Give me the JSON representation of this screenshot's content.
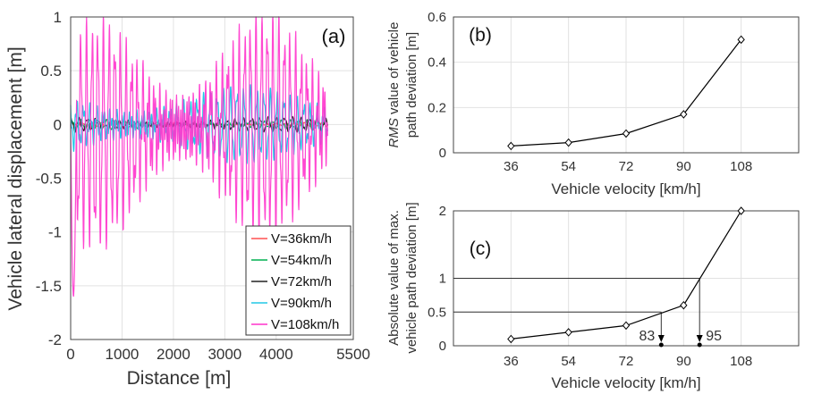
{
  "chart_data": [
    {
      "type": "line",
      "panel_label": "(a)",
      "xlabel": "Distance [m]",
      "ylabel": "Vehicle lateral displacement [m]",
      "xlim": [
        0,
        5500
      ],
      "ylim": [
        -2,
        1
      ],
      "xticks": [
        "0",
        "1000",
        "2000",
        "3000",
        "4000",
        "5500"
      ],
      "yticks": [
        "1",
        "0.5",
        "0",
        "-0.5",
        "-1",
        "-1.5",
        "-2"
      ],
      "grid": true,
      "legend_position": "bottom-right",
      "series": [
        {
          "name": "V=36km/h",
          "color": "#ff5050",
          "amplitude": 0.02,
          "period_m": 180
        },
        {
          "name": "V=54km/h",
          "color": "#00b050",
          "amplitude": 0.04,
          "period_m": 170
        },
        {
          "name": "V=72km/h",
          "color": "#222222",
          "amplitude": 0.06,
          "period_m": 160
        },
        {
          "name": "V=90km/h",
          "color": "#22c8e6",
          "amplitude": 0.3,
          "period_m": 130
        },
        {
          "name": "V=108km/h",
          "color": "#ff33cc",
          "amplitude": 0.9,
          "period_m": 110
        }
      ]
    },
    {
      "type": "line",
      "panel_label": "(b)",
      "xlabel": "Vehicle velocity [km/h]",
      "ylabel_italic": "RMS",
      "ylabel_rest": " value of vehicle",
      "ylabel_line2": "path deviation [m]",
      "xlim": [
        18,
        126
      ],
      "ylim": [
        0,
        0.6
      ],
      "xticks": [
        "36",
        "54",
        "72",
        "90",
        "108"
      ],
      "yticks": [
        "0",
        "0.2",
        "0.4",
        "0.6"
      ],
      "grid": true,
      "x": [
        36,
        54,
        72,
        90,
        108
      ],
      "y": [
        0.03,
        0.045,
        0.085,
        0.17,
        0.5
      ],
      "color": "#000000"
    },
    {
      "type": "line",
      "panel_label": "(c)",
      "xlabel": "Vehicle velocity [km/h]",
      "ylabel_line1": "Absolute value of max.",
      "ylabel_line2": "vehicle path deviation [m]",
      "xlim": [
        18,
        126
      ],
      "ylim": [
        0,
        2
      ],
      "xticks": [
        "36",
        "54",
        "72",
        "90",
        "108"
      ],
      "yticks": [
        "0",
        "0.5",
        "1",
        "2"
      ],
      "grid": true,
      "x": [
        36,
        54,
        72,
        90,
        108
      ],
      "y": [
        0.1,
        0.2,
        0.3,
        0.6,
        2.0
      ],
      "color": "#000000",
      "thresholds": [
        0.5,
        1
      ],
      "annotations": [
        {
          "text": "83",
          "x": 83,
          "y": 0.5
        },
        {
          "text": "95",
          "x": 95,
          "y": 1
        }
      ]
    }
  ]
}
